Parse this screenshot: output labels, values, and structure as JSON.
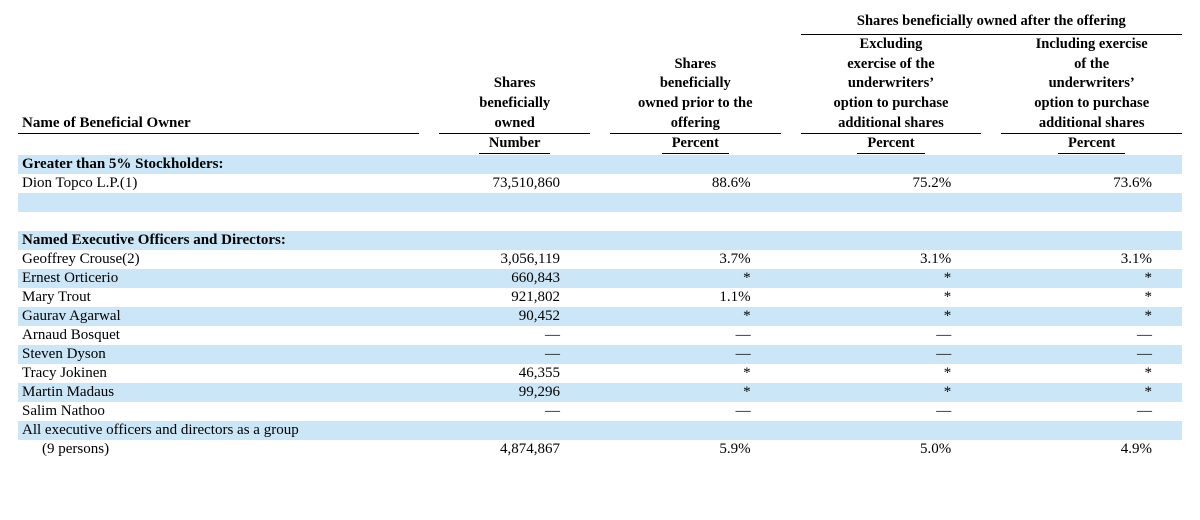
{
  "colors": {
    "shade": "#cbe6f6",
    "text": "#000000",
    "rule": "#000000",
    "bg": "#ffffff"
  },
  "headers": {
    "name": "Name of Beneficial Owner",
    "col1_l1": "Shares",
    "col1_l2": "beneficially",
    "col1_l3": "owned",
    "col2_l1": "Shares",
    "col2_l2": "beneficially",
    "col2_l3": "owned prior to the",
    "col2_l4": "offering",
    "super": "Shares beneficially owned after the offering",
    "col3_l1": "Excluding",
    "col3_l2": "exercise of the",
    "col3_l3": "underwriters’",
    "col3_l4": "option to purchase",
    "col3_l5": "additional shares",
    "col4_l1": "Including exercise",
    "col4_l2": "of the",
    "col4_l3": "underwriters’",
    "col4_l4": "option to purchase",
    "col4_l5": "additional shares",
    "sub_number": "Number",
    "sub_percent": "Percent"
  },
  "sections": {
    "greater": "Greater than 5% Stockholders:",
    "neo": "Named Executive Officers and Directors:"
  },
  "rows": {
    "dion": {
      "name": "Dion Topco L.P.(1)",
      "num": "73,510,860",
      "p1": "88.6%",
      "p2": "75.2%",
      "p3": "73.6%"
    },
    "crouse": {
      "name": "Geoffrey Crouse(2)",
      "num": "3,056,119",
      "p1": "3.7%",
      "p2": "3.1%",
      "p3": "3.1%"
    },
    "ort": {
      "name": "Ernest Orticerio",
      "num": "660,843",
      "p1": "*",
      "p2": "*",
      "p3": "*"
    },
    "trout": {
      "name": "Mary Trout",
      "num": "921,802",
      "p1": "1.1%",
      "p2": "*",
      "p3": "*"
    },
    "agar": {
      "name": "Gaurav Agarwal",
      "num": "90,452",
      "p1": "*",
      "p2": "*",
      "p3": "*"
    },
    "bosq": {
      "name": "Arnaud Bosquet",
      "num": "—",
      "p1": "—",
      "p2": "—",
      "p3": "—"
    },
    "dyson": {
      "name": "Steven Dyson",
      "num": "—",
      "p1": "—",
      "p2": "—",
      "p3": "—"
    },
    "jok": {
      "name": "Tracy Jokinen",
      "num": "46,355",
      "p1": "*",
      "p2": "*",
      "p3": "*"
    },
    "mad": {
      "name": "Martin Madaus",
      "num": "99,296",
      "p1": "*",
      "p2": "*",
      "p3": "*"
    },
    "nath": {
      "name": "Salim Nathoo",
      "num": "—",
      "p1": "—",
      "p2": "—",
      "p3": "—"
    },
    "group_l1": "All executive officers and directors as a group",
    "group_l2": "(9 persons)",
    "group": {
      "num": "4,874,867",
      "p1": "5.9%",
      "p2": "5.0%",
      "p3": "4.9%"
    }
  }
}
